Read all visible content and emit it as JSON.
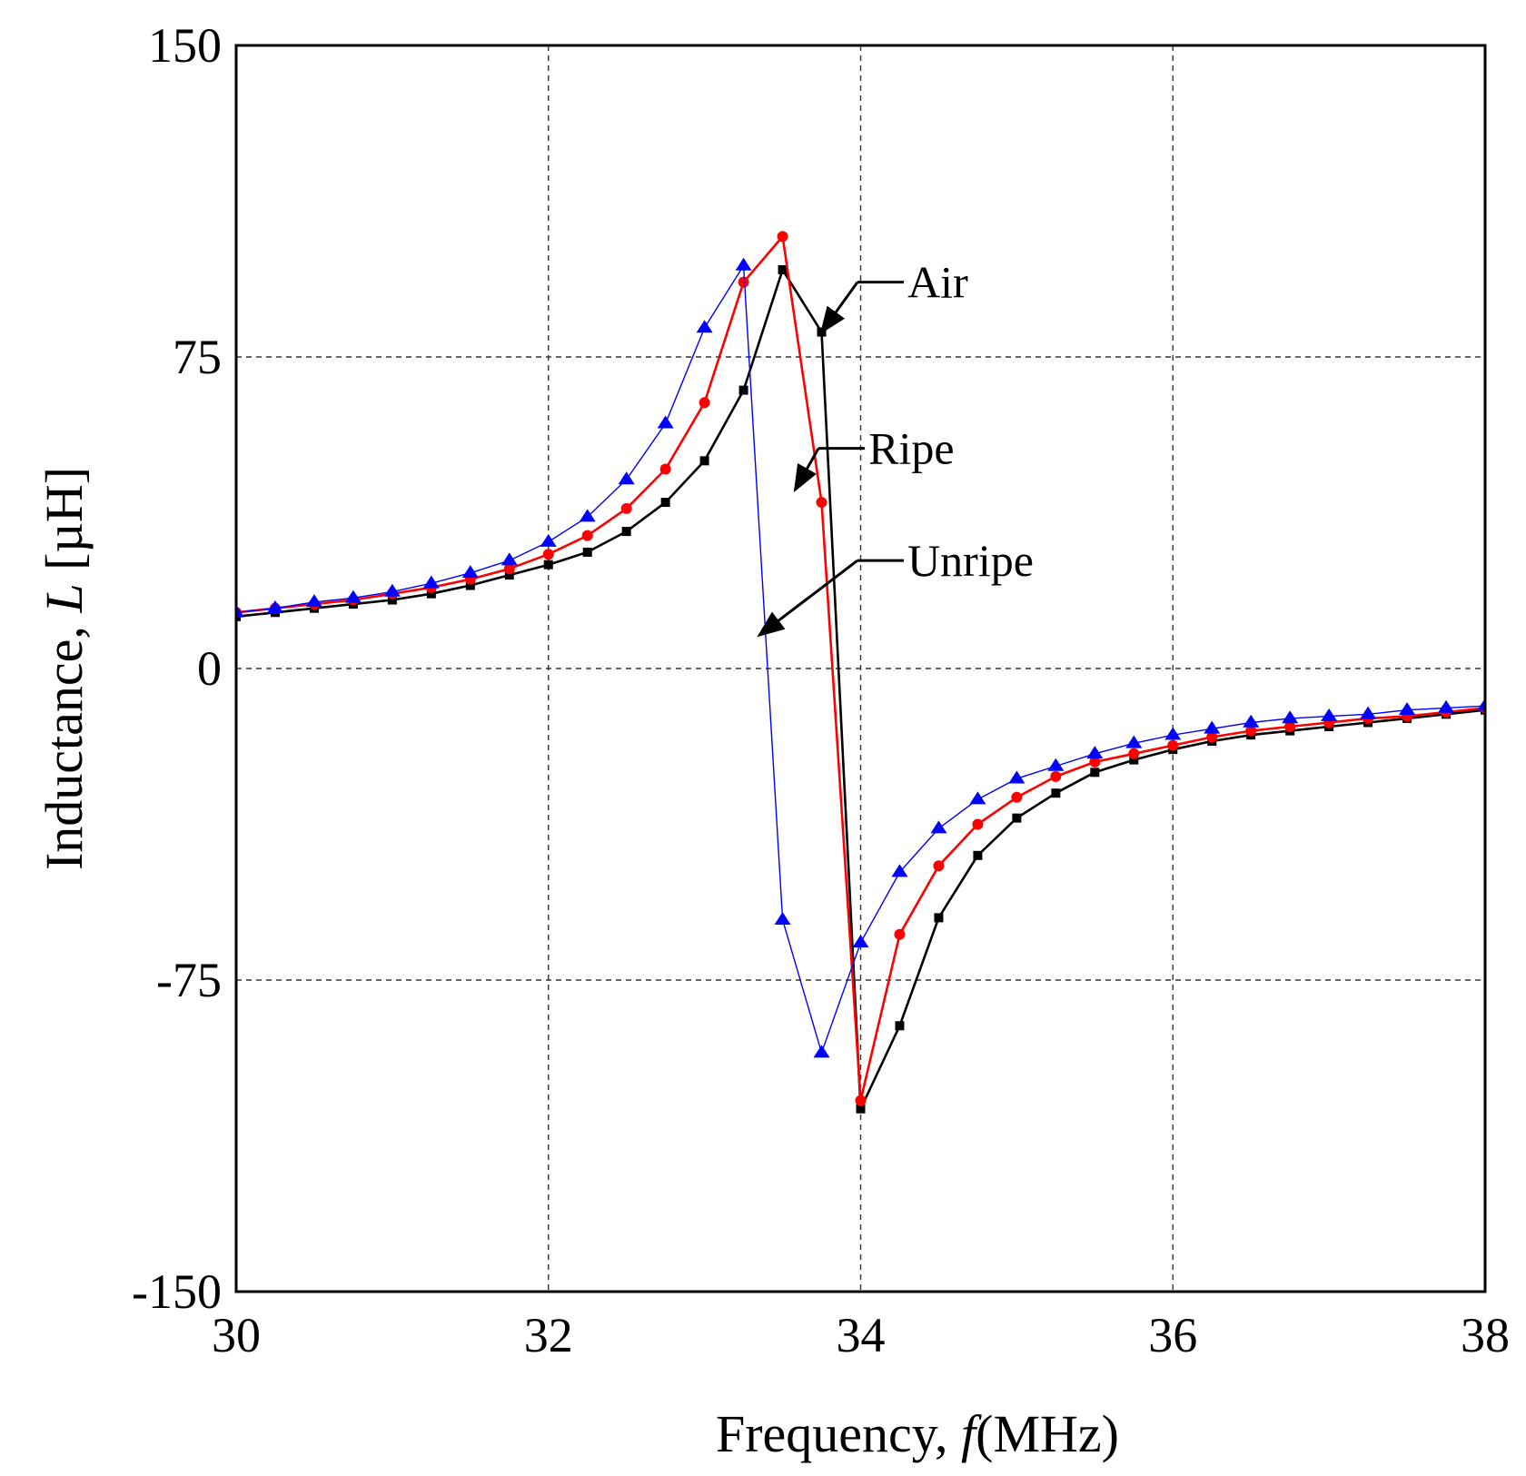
{
  "chart_data": {
    "type": "line",
    "xlabel": "Frequency, ",
    "xlabel_var": "f",
    "xlabel_unit": "(MHz)",
    "ylabel": "Inductance, ",
    "ylabel_var": "L",
    "ylabel_unit": " [µH]",
    "xlim": [
      30,
      38
    ],
    "ylim": [
      -150,
      150
    ],
    "xticks": [
      30,
      32,
      34,
      36,
      38
    ],
    "xtick_labels": [
      "30",
      "32",
      "34",
      "36",
      "38"
    ],
    "yticks": [
      -150,
      -75,
      0,
      75,
      150
    ],
    "ytick_labels": [
      "-150",
      "-75",
      "0",
      "75",
      "150"
    ],
    "grid": true,
    "x": [
      30,
      30.25,
      30.5,
      30.75,
      31,
      31.25,
      31.5,
      31.75,
      32,
      32.25,
      32.5,
      32.75,
      33,
      33.25,
      33.5,
      33.75,
      34,
      34.25,
      34.5,
      34.75,
      35,
      35.25,
      35.5,
      35.75,
      36,
      36.25,
      36.5,
      36.75,
      37,
      37.25,
      37.5,
      37.75,
      38
    ],
    "series": [
      {
        "name": "Air",
        "color": "#000000",
        "marker": "square",
        "values": [
          12.5,
          13.5,
          14.5,
          15.5,
          16.5,
          18,
          20,
          22.5,
          25,
          28,
          33,
          40,
          50,
          67,
          96,
          81,
          -106,
          -86,
          -60,
          -45,
          -36,
          -30,
          -25,
          -22,
          -19.5,
          -17.5,
          -16,
          -15,
          -14,
          -13,
          -12,
          -11,
          -10
        ]
      },
      {
        "name": "Ripe",
        "color": "#ff0000",
        "marker": "circle",
        "values": [
          13.5,
          14.5,
          15.5,
          16.5,
          18,
          19.5,
          21.5,
          24,
          27.5,
          32,
          38.5,
          48,
          64,
          93,
          104,
          40,
          -104,
          -64,
          -47.5,
          -37.5,
          -31,
          -26,
          -22.5,
          -20.5,
          -18.5,
          -16.5,
          -15,
          -14,
          -13,
          -12,
          -11.5,
          -10.5,
          -9.5
        ]
      },
      {
        "name": "Unripe",
        "color": "#0000ff",
        "marker": "triangle",
        "values": [
          13.5,
          14.5,
          16,
          17,
          18.5,
          20.5,
          23,
          26,
          30.5,
          36.5,
          45.5,
          59,
          82,
          97,
          -60.5,
          -92.5,
          -66,
          -49,
          -38.5,
          -31.5,
          -26.5,
          -23.5,
          -20.5,
          -18,
          -16,
          -14.5,
          -13,
          -12,
          -11.5,
          -11,
          -10,
          -9.5,
          -9
        ]
      }
    ],
    "annotations": [
      {
        "text": "Air",
        "series": "Air",
        "x": 33.75,
        "y": 81,
        "label_x": 34.3,
        "label_y": 93
      },
      {
        "text": "Ripe",
        "series": "Ripe",
        "x": 33.58,
        "y": 43,
        "label_x": 34.05,
        "label_y": 53
      },
      {
        "text": "Unripe",
        "series": "Unripe",
        "x": 33.35,
        "y": 8,
        "label_x": 34.3,
        "label_y": 26
      }
    ]
  }
}
